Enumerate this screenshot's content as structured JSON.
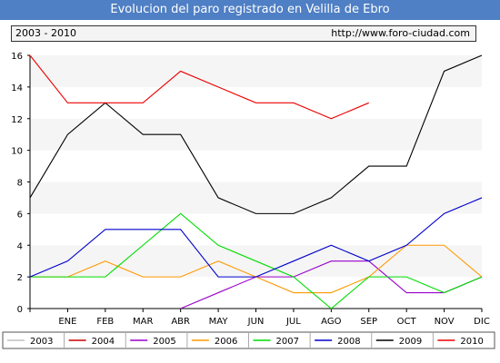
{
  "title": "Evolucion del paro registrado en Velilla de Ebro",
  "period_label": "2003 - 2010",
  "source_url": "http://www.foro-ciudad.com",
  "chart_data": {
    "type": "line",
    "categories": [
      "",
      "ENE",
      "FEB",
      "MAR",
      "ABR",
      "MAY",
      "JUN",
      "JUL",
      "AGO",
      "SEP",
      "OCT",
      "NOV",
      "DIC"
    ],
    "ylim": [
      0,
      16
    ],
    "yticks": [
      0,
      2,
      4,
      6,
      8,
      10,
      12,
      14,
      16
    ],
    "series": [
      {
        "name": "2003",
        "color": "#c0c0c0",
        "values": [
          null,
          null,
          null,
          null,
          null,
          null,
          null,
          null,
          null,
          null,
          null,
          null,
          null
        ]
      },
      {
        "name": "2004",
        "color": "#cc0000",
        "values": [
          null,
          null,
          null,
          null,
          null,
          null,
          null,
          null,
          null,
          null,
          null,
          null,
          null
        ]
      },
      {
        "name": "2005",
        "color": "#9900cc",
        "values": [
          null,
          null,
          null,
          null,
          0,
          1,
          2,
          2,
          3,
          3,
          1,
          1,
          2
        ]
      },
      {
        "name": "2006",
        "color": "#ff9900",
        "values": [
          2,
          2,
          3,
          2,
          2,
          3,
          2,
          1,
          1,
          2,
          4,
          4,
          2
        ]
      },
      {
        "name": "2007",
        "color": "#00dd00",
        "values": [
          2,
          2,
          2,
          4,
          6,
          4,
          3,
          2,
          0,
          2,
          2,
          1,
          2
        ]
      },
      {
        "name": "2008",
        "color": "#0000cc",
        "values": [
          2,
          3,
          5,
          5,
          5,
          2,
          2,
          3,
          4,
          3,
          4,
          6,
          7
        ]
      },
      {
        "name": "2009",
        "color": "#000000",
        "values": [
          7,
          11,
          13,
          11,
          11,
          7,
          6,
          6,
          7,
          9,
          9,
          15,
          16
        ]
      },
      {
        "name": "2010",
        "color": "#ee0000",
        "values": [
          16,
          13,
          13,
          13,
          15,
          14,
          13,
          13,
          12,
          13,
          null,
          null,
          null
        ]
      }
    ],
    "grid": "alternating-bands",
    "legend_placement": "bottom"
  }
}
